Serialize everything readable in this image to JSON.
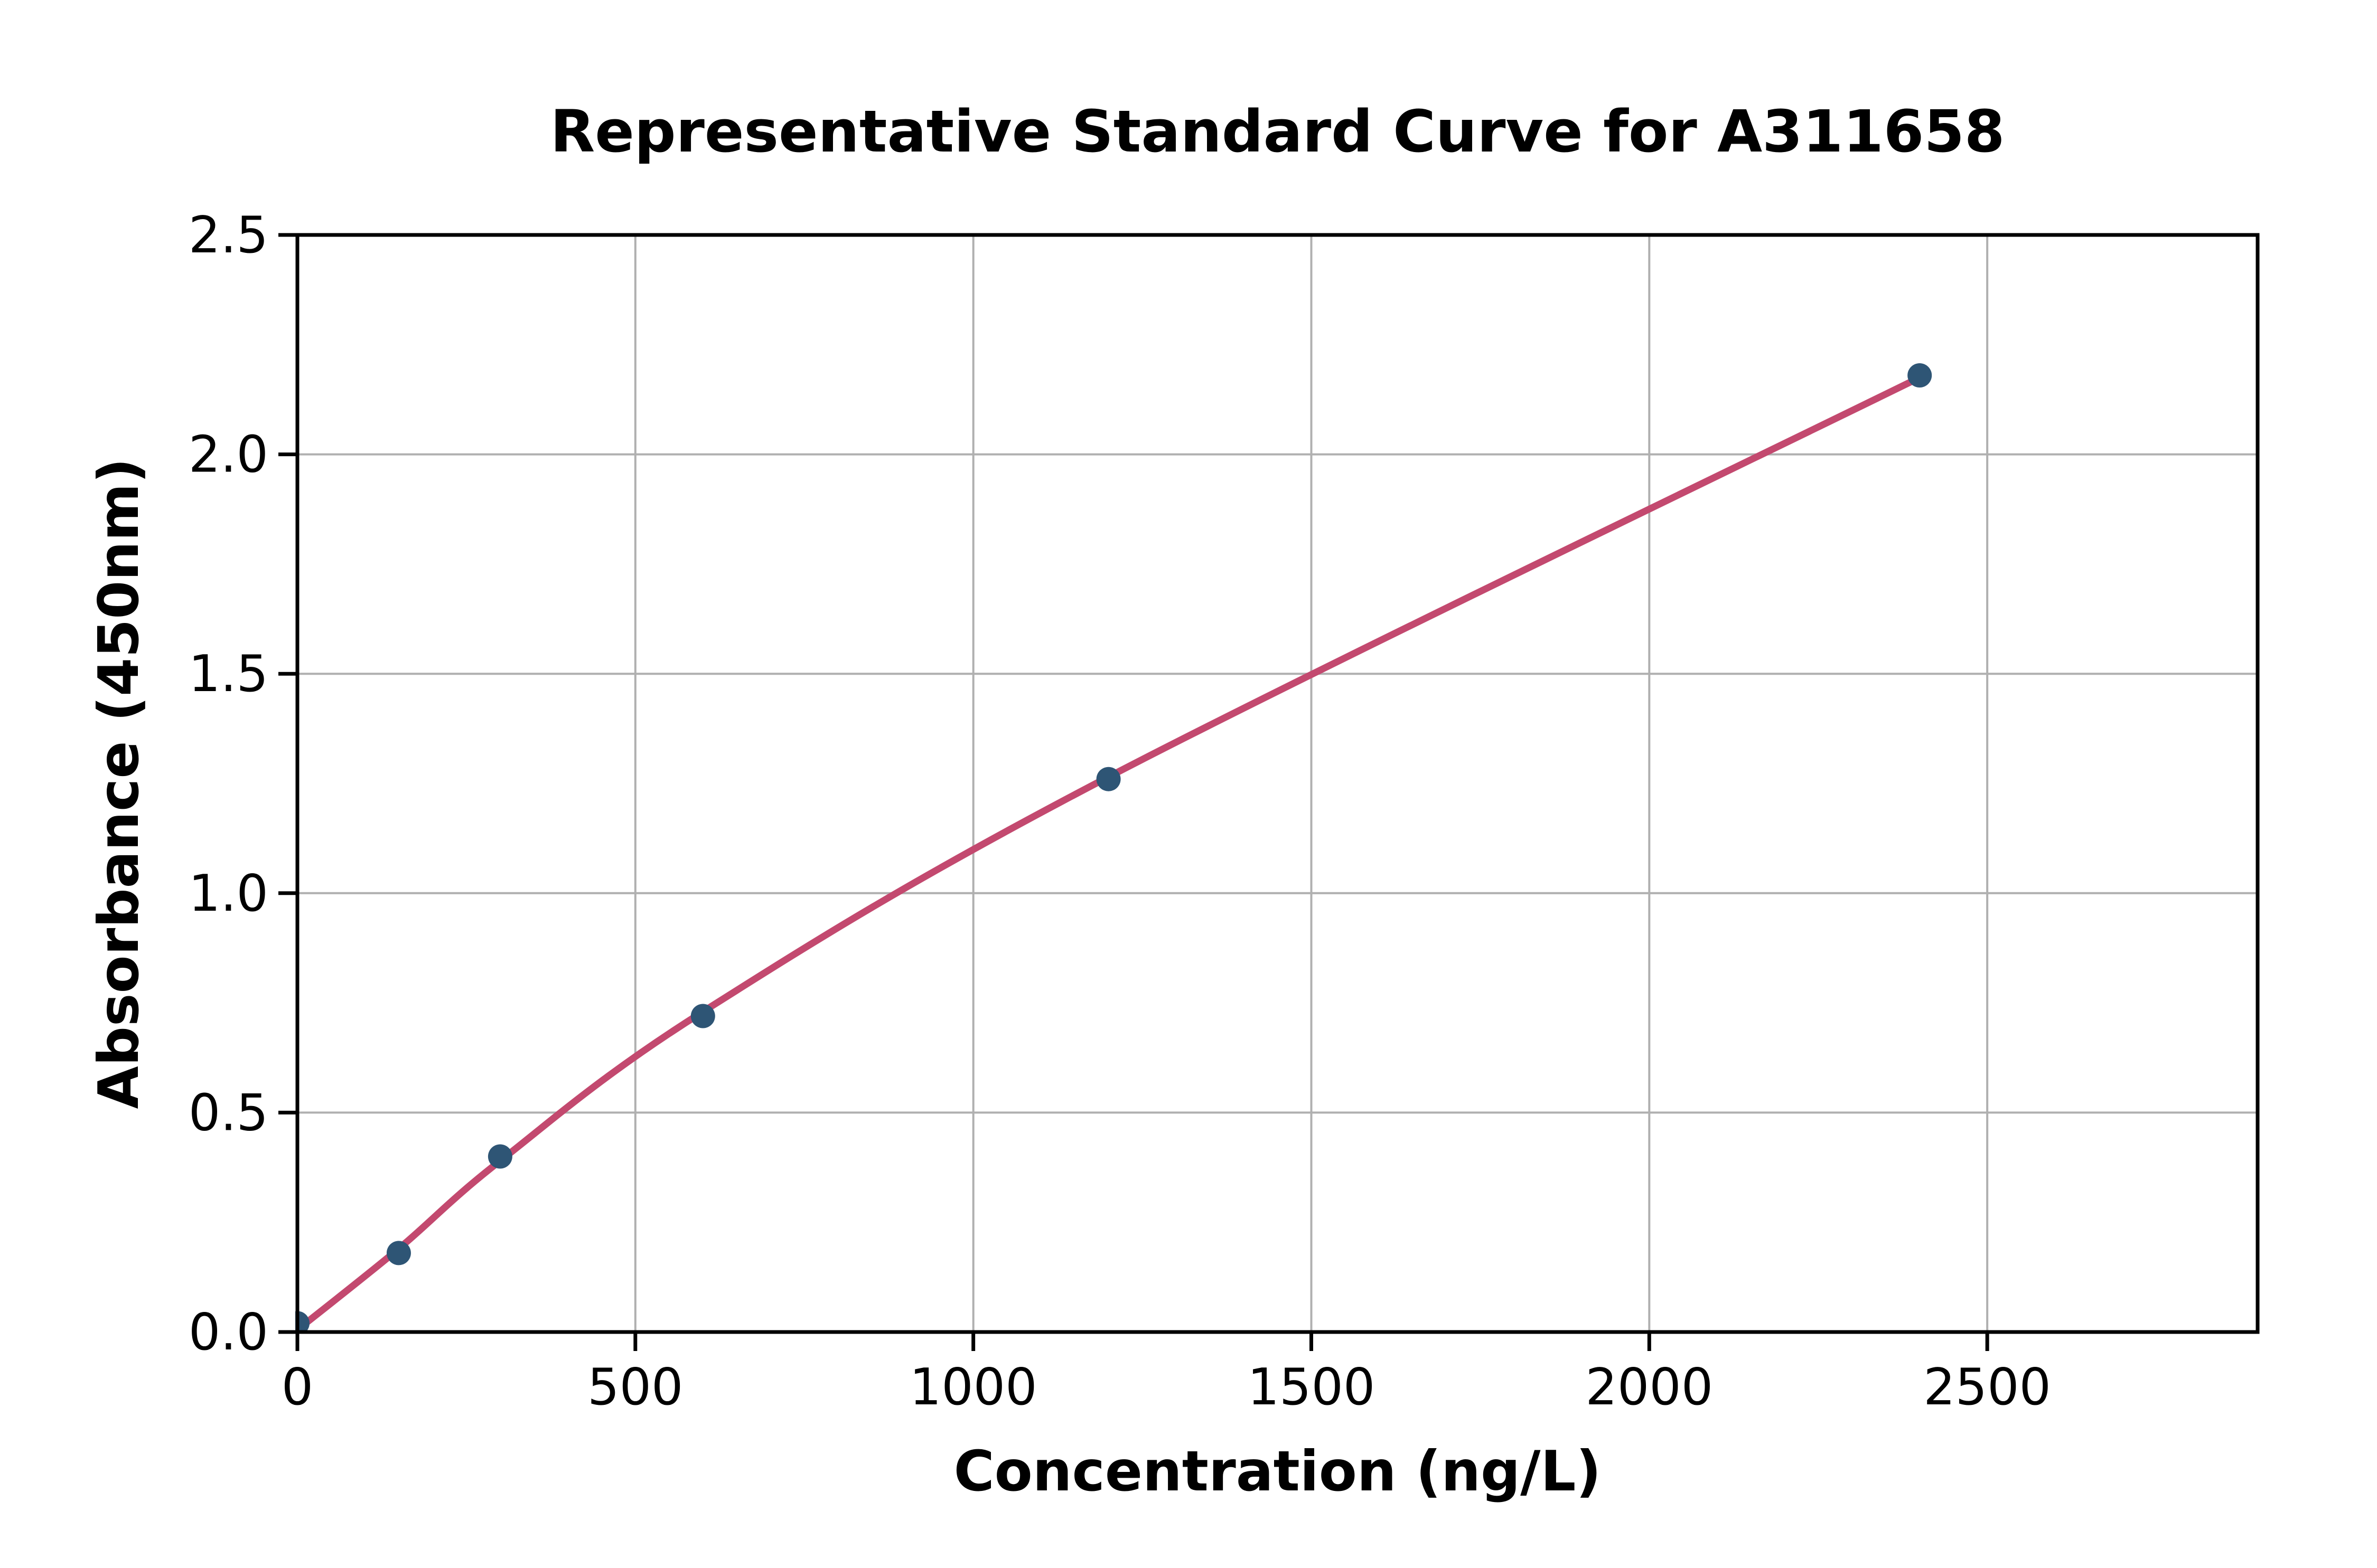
{
  "chart_data": {
    "type": "scatter",
    "title": "Representative Standard Curve for A311658",
    "xlabel": "Concentration (ng/L)",
    "ylabel": "Absorbance (450nm)",
    "xlim": [
      0,
      2900
    ],
    "ylim": [
      0,
      2.5
    ],
    "x_ticks": [
      0,
      500,
      1000,
      1500,
      2000,
      2500
    ],
    "x_tick_labels": [
      "0",
      "500",
      "1000",
      "1500",
      "2000",
      "2500"
    ],
    "y_ticks": [
      0.0,
      0.5,
      1.0,
      1.5,
      2.0,
      2.5
    ],
    "y_tick_labels": [
      "0.0",
      "0.5",
      "1.0",
      "1.5",
      "2.0",
      "2.5"
    ],
    "grid": true,
    "legend_position": "none",
    "series": [
      {
        "name": "standard-points",
        "type": "scatter",
        "x": [
          0,
          150,
          300,
          600,
          1200,
          2400
        ],
        "y": [
          0.02,
          0.18,
          0.4,
          0.72,
          1.26,
          2.18
        ]
      },
      {
        "name": "fit-curve",
        "type": "line",
        "x": [
          0,
          150,
          300,
          600,
          1200,
          2400
        ],
        "y": [
          0.005,
          0.19,
          0.39,
          0.73,
          1.265,
          2.175
        ]
      }
    ],
    "colors": {
      "marker": "#2e5575",
      "line": "#c3496f",
      "grid": "#b0b0b0",
      "spine": "#000000",
      "text": "#000000",
      "background": "#ffffff"
    }
  }
}
